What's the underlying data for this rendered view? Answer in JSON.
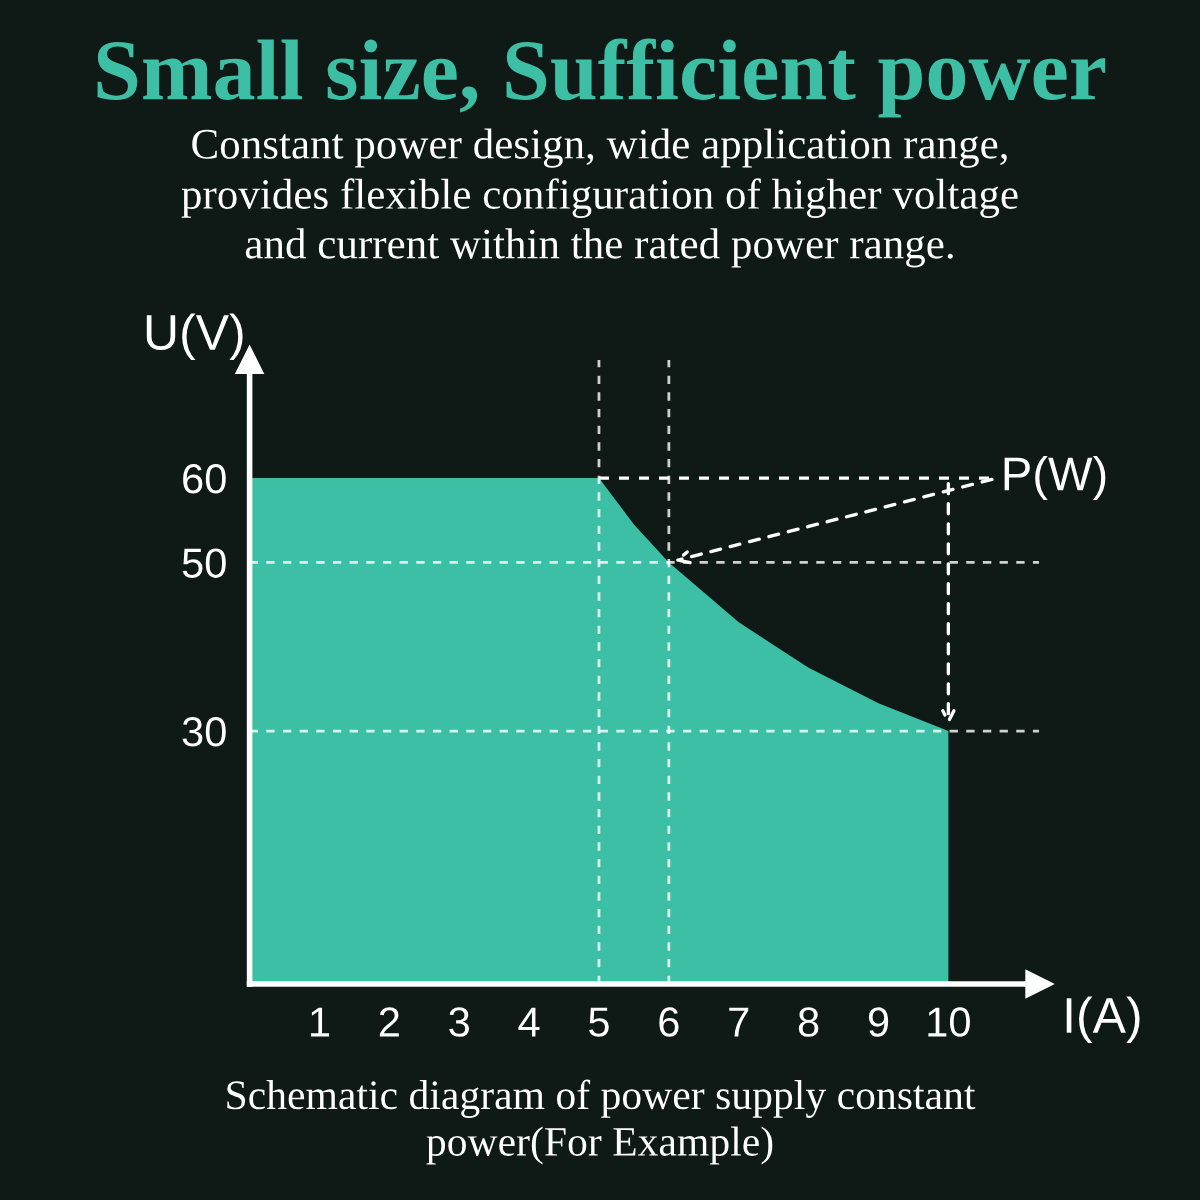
{
  "chart_data": {
    "type": "area",
    "title": "Small size, Sufficient power",
    "subtitle": "Constant power design, wide application range,\nprovides flexible configuration of higher voltage\nand current within the rated power range.",
    "xlabel": "I(A)",
    "ylabel": "U(V)",
    "x": [
      0,
      5,
      5.5,
      6,
      7,
      8,
      9,
      10
    ],
    "series": [
      {
        "color": "#3dbfa5",
        "values": [
          60,
          60,
          54.5,
          50,
          42.9,
          37.5,
          33.3,
          30
        ]
      }
    ],
    "xlim": [
      0,
      11.3
    ],
    "ylim": [
      0,
      74
    ],
    "xticks": [
      1,
      2,
      3,
      4,
      5,
      6,
      7,
      8,
      9,
      10
    ],
    "yticks": [
      30,
      50,
      60
    ],
    "ref_lines": [
      {
        "axis": "x",
        "value": 5,
        "color": "#ffffff",
        "line_style": "dashed"
      },
      {
        "axis": "x",
        "value": 6,
        "color": "#ffffff",
        "line_style": "dashed"
      },
      {
        "axis": "y",
        "value": 50,
        "color": "#ffffff",
        "line_style": "dashed"
      },
      {
        "axis": "y",
        "value": 30,
        "color": "#ffffff",
        "line_style": "dashed"
      }
    ],
    "annotations": [
      {
        "text": "P(W)",
        "x": 6,
        "y": 50
      },
      "Schematic diagram of power supply constant\npower(For Example)"
    ],
    "grid": false,
    "legend": false
  }
}
